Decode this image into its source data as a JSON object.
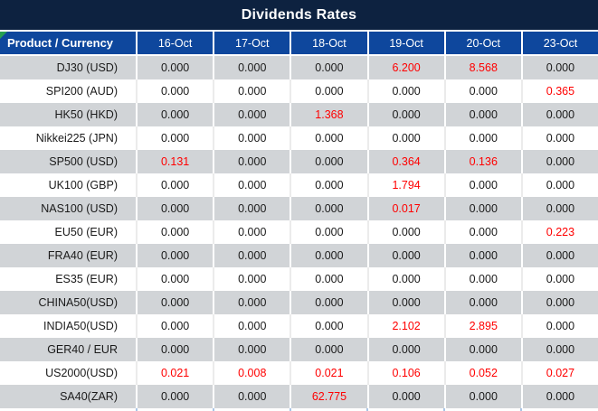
{
  "chart_data": {
    "type": "table",
    "title": "Dividends Rates",
    "columns": [
      "Product / Currency",
      "16-Oct",
      "17-Oct",
      "18-Oct",
      "19-Oct",
      "20-Oct",
      "23-Oct"
    ],
    "rows": [
      {
        "product": "DJ30 (USD)",
        "values": [
          "0.000",
          "0.000",
          "0.000",
          "6.200",
          "8.568",
          "0.000"
        ],
        "red": [
          3,
          4
        ]
      },
      {
        "product": "SPI200 (AUD)",
        "values": [
          "0.000",
          "0.000",
          "0.000",
          "0.000",
          "0.000",
          "0.365"
        ],
        "red": [
          5
        ]
      },
      {
        "product": "HK50 (HKD)",
        "values": [
          "0.000",
          "0.000",
          "1.368",
          "0.000",
          "0.000",
          "0.000"
        ],
        "red": [
          2
        ]
      },
      {
        "product": "Nikkei225 (JPN)",
        "values": [
          "0.000",
          "0.000",
          "0.000",
          "0.000",
          "0.000",
          "0.000"
        ],
        "red": []
      },
      {
        "product": "SP500 (USD)",
        "values": [
          "0.131",
          "0.000",
          "0.000",
          "0.364",
          "0.136",
          "0.000"
        ],
        "red": [
          0,
          3,
          4
        ]
      },
      {
        "product": "UK100 (GBP)",
        "values": [
          "0.000",
          "0.000",
          "0.000",
          "1.794",
          "0.000",
          "0.000"
        ],
        "red": [
          3
        ]
      },
      {
        "product": "NAS100 (USD)",
        "values": [
          "0.000",
          "0.000",
          "0.000",
          "0.017",
          "0.000",
          "0.000"
        ],
        "red": [
          3
        ]
      },
      {
        "product": "EU50 (EUR)",
        "values": [
          "0.000",
          "0.000",
          "0.000",
          "0.000",
          "0.000",
          "0.223"
        ],
        "red": [
          5
        ]
      },
      {
        "product": "FRA40 (EUR)",
        "values": [
          "0.000",
          "0.000",
          "0.000",
          "0.000",
          "0.000",
          "0.000"
        ],
        "red": []
      },
      {
        "product": "ES35 (EUR)",
        "values": [
          "0.000",
          "0.000",
          "0.000",
          "0.000",
          "0.000",
          "0.000"
        ],
        "red": []
      },
      {
        "product": "CHINA50(USD)",
        "values": [
          "0.000",
          "0.000",
          "0.000",
          "0.000",
          "0.000",
          "0.000"
        ],
        "red": []
      },
      {
        "product": "INDIA50(USD)",
        "values": [
          "0.000",
          "0.000",
          "0.000",
          "2.102",
          "2.895",
          "0.000"
        ],
        "red": [
          3,
          4
        ]
      },
      {
        "product": "GER40 / EUR",
        "values": [
          "0.000",
          "0.000",
          "0.000",
          "0.000",
          "0.000",
          "0.000"
        ],
        "red": []
      },
      {
        "product": "US2000(USD)",
        "values": [
          "0.021",
          "0.008",
          "0.021",
          "0.106",
          "0.052",
          "0.027"
        ],
        "red": [
          0,
          1,
          2,
          3,
          4,
          5
        ]
      },
      {
        "product": "SA40(ZAR)",
        "values": [
          "0.000",
          "0.000",
          "62.775",
          "0.000",
          "0.000",
          "0.000"
        ],
        "red": [
          2
        ]
      }
    ]
  },
  "colors": {
    "title_bg": "#0d2240",
    "header_bg": "#0e479d",
    "row_alt_bg": "#d1d4d7",
    "row_bg": "#ffffff",
    "value_red": "#ff0000",
    "value_black": "#1a1a1a",
    "corner_green": "#27a052",
    "sliver_tick": "#aac5e5"
  }
}
